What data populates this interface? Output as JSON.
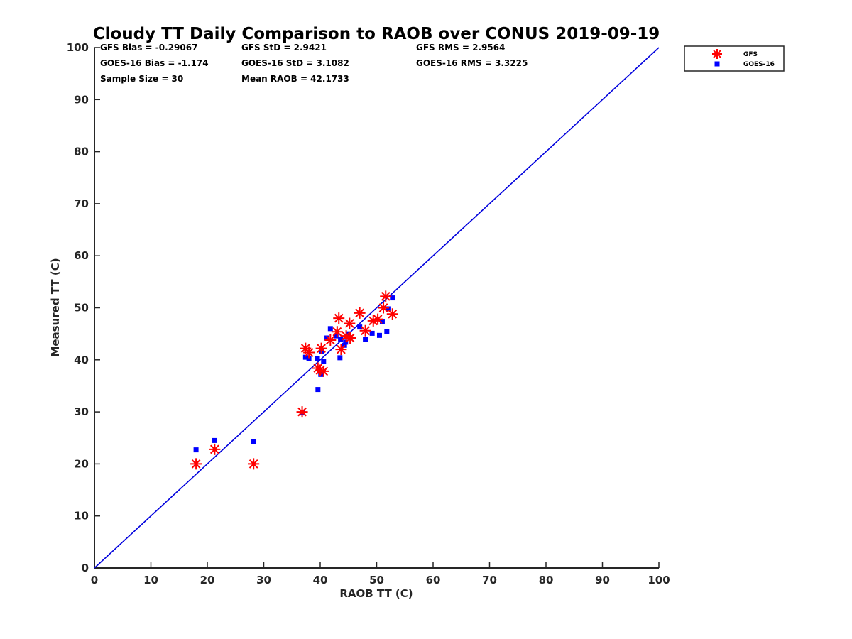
{
  "chart_data": {
    "type": "scatter",
    "title": "Cloudy TT Daily Comparison to RAOB over CONUS 2019-09-19",
    "xlabel": "RAOB TT (C)",
    "ylabel": "Measured TT (C)",
    "xlim": [
      0,
      100
    ],
    "ylim": [
      0,
      100
    ],
    "xticks": [
      0,
      10,
      20,
      30,
      40,
      50,
      60,
      70,
      80,
      90,
      100
    ],
    "yticks": [
      0,
      10,
      20,
      30,
      40,
      50,
      60,
      70,
      80,
      90,
      100
    ],
    "grid": false,
    "legend_position": "top-right",
    "reference_line": {
      "x": [
        0,
        100
      ],
      "y": [
        0,
        100
      ],
      "color": "#0000dd"
    },
    "stats": {
      "gfs_bias": "GFS Bias = -0.29067",
      "gfs_std": "GFS StD = 2.9421",
      "gfs_rms": "GFS RMS = 2.9564",
      "goes_bias": "GOES-16 Bias = -1.174",
      "goes_std": "GOES-16 StD = 3.1082",
      "goes_rms": "GOES-16 RMS = 3.3225",
      "sample_size": "Sample Size = 30",
      "mean_raob": "Mean RAOB = 42.1733"
    },
    "series": [
      {
        "name": "GFS",
        "marker": "asterisk",
        "color": "#ff0000",
        "points": [
          [
            18.0,
            20.0
          ],
          [
            21.3,
            22.8
          ],
          [
            28.2,
            20.0
          ],
          [
            36.8,
            30.0
          ],
          [
            37.4,
            42.2
          ],
          [
            38.0,
            41.4
          ],
          [
            39.6,
            38.4
          ],
          [
            40.2,
            42.2
          ],
          [
            40.0,
            38.0
          ],
          [
            40.6,
            37.8
          ],
          [
            41.8,
            43.8
          ],
          [
            43.0,
            45.4
          ],
          [
            43.3,
            48.0
          ],
          [
            43.7,
            42.0
          ],
          [
            44.6,
            44.6
          ],
          [
            45.2,
            47.0
          ],
          [
            45.3,
            44.2
          ],
          [
            47.0,
            49.0
          ],
          [
            48.0,
            45.6
          ],
          [
            49.4,
            47.5
          ],
          [
            50.2,
            47.8
          ],
          [
            51.2,
            50.0
          ],
          [
            51.6,
            52.2
          ],
          [
            52.8,
            48.8
          ]
        ]
      },
      {
        "name": "GOES-16",
        "marker": "square",
        "color": "#0000ff",
        "points": [
          [
            18.0,
            22.7
          ],
          [
            21.3,
            24.5
          ],
          [
            28.2,
            24.3
          ],
          [
            36.9,
            29.8
          ],
          [
            37.4,
            40.5
          ],
          [
            38.0,
            40.2
          ],
          [
            39.5,
            40.3
          ],
          [
            39.6,
            34.3
          ],
          [
            40.1,
            37.2
          ],
          [
            40.2,
            41.6
          ],
          [
            40.6,
            39.7
          ],
          [
            41.2,
            44.2
          ],
          [
            41.8,
            46.0
          ],
          [
            42.8,
            44.6
          ],
          [
            43.5,
            40.4
          ],
          [
            43.6,
            44.0
          ],
          [
            44.3,
            42.8
          ],
          [
            44.5,
            43.4
          ],
          [
            45.0,
            45.0
          ],
          [
            47.0,
            46.3
          ],
          [
            48.0,
            43.9
          ],
          [
            49.2,
            45.1
          ],
          [
            50.5,
            44.7
          ],
          [
            51.0,
            47.4
          ],
          [
            51.8,
            45.4
          ],
          [
            52.0,
            49.8
          ],
          [
            52.8,
            51.9
          ]
        ]
      }
    ]
  }
}
